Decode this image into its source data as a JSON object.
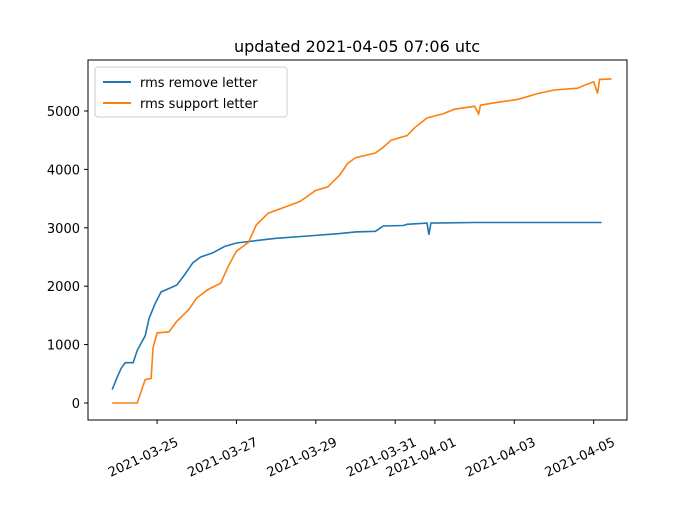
{
  "chart_data": {
    "type": "line",
    "title": "updated 2021-04-05 07:06 utc",
    "series": [
      {
        "name": "rms remove letter",
        "color": "#1f77b4",
        "x": [
          23.87,
          24.0,
          24.1,
          24.2,
          24.4,
          24.5,
          24.7,
          24.8,
          24.95,
          25.1,
          25.3,
          25.5,
          25.7,
          25.9,
          26.1,
          26.4,
          26.7,
          27.0,
          27.5,
          28.0,
          28.8,
          29.6,
          30.0,
          30.5,
          30.7,
          31.2,
          31.3,
          31.8,
          31.85,
          31.9,
          33.0,
          36.2
        ],
        "values": [
          230,
          450,
          600,
          690,
          690,
          900,
          1150,
          1450,
          1700,
          1900,
          1960,
          2020,
          2200,
          2400,
          2500,
          2570,
          2680,
          2740,
          2780,
          2820,
          2860,
          2900,
          2930,
          2940,
          3030,
          3040,
          3060,
          3080,
          2880,
          3080,
          3090,
          3090
        ]
      },
      {
        "name": "rms support letter",
        "color": "#ff7f0e",
        "x": [
          23.87,
          24.5,
          24.7,
          24.85,
          24.9,
          25.0,
          25.3,
          25.5,
          25.8,
          26.0,
          26.3,
          26.6,
          26.8,
          27.0,
          27.3,
          27.5,
          27.8,
          28.2,
          28.6,
          29.0,
          29.3,
          29.6,
          29.8,
          30.0,
          30.5,
          30.7,
          30.9,
          31.3,
          31.5,
          31.8,
          32.2,
          32.5,
          33.0,
          33.1,
          33.15,
          33.6,
          34.1,
          34.6,
          35.0,
          35.6,
          35.8,
          36.0,
          36.1,
          36.15,
          36.45
        ],
        "values": [
          0,
          0,
          400,
          420,
          950,
          1200,
          1220,
          1400,
          1600,
          1800,
          1950,
          2050,
          2350,
          2600,
          2750,
          3050,
          3250,
          3350,
          3450,
          3640,
          3700,
          3900,
          4100,
          4200,
          4280,
          4380,
          4500,
          4580,
          4720,
          4880,
          4950,
          5030,
          5080,
          4950,
          5100,
          5150,
          5200,
          5300,
          5360,
          5390,
          5450,
          5500,
          5300,
          5540,
          5550
        ]
      }
    ],
    "xlim": [
      23.26,
      36.84
    ],
    "ylim": [
      -291,
      5873
    ],
    "xticks": [
      {
        "value": 25,
        "label": "2021-03-25"
      },
      {
        "value": 27,
        "label": "2021-03-27"
      },
      {
        "value": 29,
        "label": "2021-03-29"
      },
      {
        "value": 31,
        "label": "2021-03-31"
      },
      {
        "value": 32,
        "label": "2021-04-01"
      },
      {
        "value": 34,
        "label": "2021-04-03"
      },
      {
        "value": 36,
        "label": "2021-04-05"
      }
    ],
    "yticks": [
      0,
      1000,
      2000,
      3000,
      4000,
      5000
    ],
    "legend": "upper left"
  }
}
